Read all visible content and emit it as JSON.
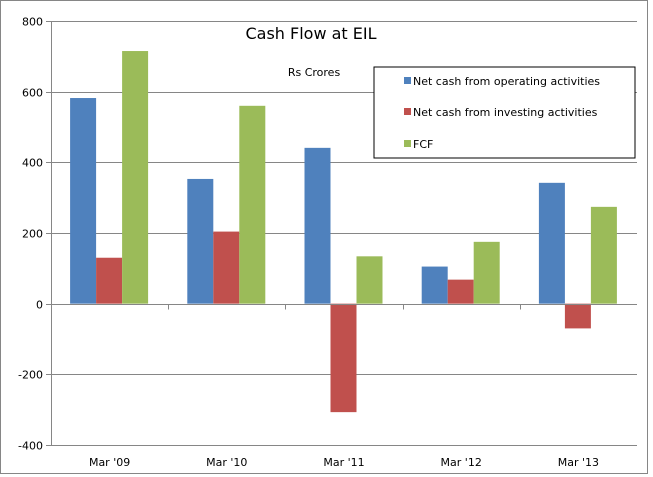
{
  "chart_data": {
    "type": "bar",
    "title": "Cash Flow at EIL",
    "subtitle": "Rs Crores",
    "xlabel": "",
    "ylabel": "",
    "categories": [
      "Mar '09",
      "Mar '10",
      "Mar '11",
      "Mar '12",
      "Mar '13"
    ],
    "series": [
      {
        "name": "Net cash from operating activities",
        "color": "#4F81BD",
        "values": [
          582,
          353,
          441,
          105,
          342
        ]
      },
      {
        "name": "Net cash from investing activities",
        "color": "#C0504D",
        "values": [
          130,
          204,
          -307,
          68,
          -70
        ]
      },
      {
        "name": "FCF",
        "color": "#9BBB59",
        "values": [
          715,
          560,
          134,
          175,
          274
        ]
      }
    ],
    "ylim": [
      -400,
      800
    ],
    "yticks": [
      800,
      600,
      400,
      200,
      0,
      -200,
      -400
    ],
    "grid": true,
    "legend_position": "top-right"
  }
}
